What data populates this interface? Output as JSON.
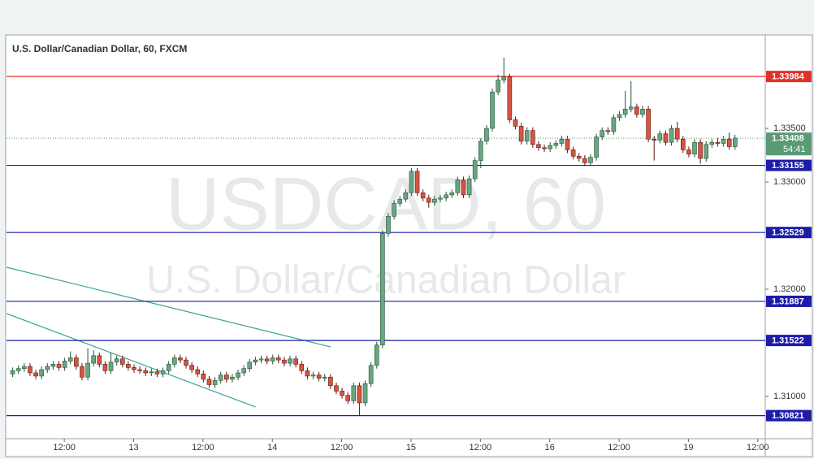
{
  "chart_data": {
    "type": "candlestick",
    "title": "U.S. Dollar/Canadian Dollar, 60, FXCM",
    "watermark": [
      "USDCAD, 60",
      "U.S. Dollar/Canadian Dollar"
    ],
    "up_color": "#6ba583",
    "down_color": "#d75442",
    "ylim": [
      1.30606,
      1.34364
    ],
    "yticks": [
      {
        "value": 1.335,
        "label": "1.33500"
      },
      {
        "value": 1.33,
        "label": "1.33000"
      },
      {
        "value": 1.32,
        "label": "1.32000"
      },
      {
        "value": 1.31,
        "label": "1.31000"
      }
    ],
    "xlim": [
      -1,
      130.3
    ],
    "xticks": [
      {
        "value": 9,
        "label": "12:00"
      },
      {
        "value": 21,
        "label": "13"
      },
      {
        "value": 33,
        "label": "12:00"
      },
      {
        "value": 45,
        "label": "14"
      },
      {
        "value": 57,
        "label": "12:00"
      },
      {
        "value": 69,
        "label": "15"
      },
      {
        "value": 81,
        "label": "12:00"
      },
      {
        "value": 93,
        "label": "16"
      },
      {
        "value": 105,
        "label": "12:00"
      },
      {
        "value": 117,
        "label": "19"
      },
      {
        "value": 129,
        "label": "12:00"
      }
    ],
    "levels": [
      {
        "value": 1.33984,
        "color": "#e0302a"
      },
      {
        "value": 1.33155,
        "color": "#1c1ca8"
      },
      {
        "value": 1.32529,
        "color": "#1c1ca8"
      },
      {
        "value": 1.31887,
        "color": "#1c1ca8"
      },
      {
        "value": 1.31522,
        "color": "#1c1ca8"
      },
      {
        "value": 1.30821,
        "color": "#1c1ca8"
      }
    ],
    "last_price": 1.33408,
    "last_color": "#5a9a74",
    "countdown": "54:41",
    "trend_lines": [
      {
        "color": "#3aa392",
        "x": [
          -1,
          55.1
        ],
        "y": [
          1.32205,
          1.31462
        ]
      },
      {
        "color": "#3aa392",
        "x": [
          -1,
          42.1
        ],
        "y": [
          1.31773,
          1.30902
        ]
      }
    ],
    "candles": [
      [
        1.3121,
        1.3127,
        1.3118,
        1.3124
      ],
      [
        1.3124,
        1.3129,
        1.3121,
        1.3126
      ],
      [
        1.3126,
        1.3131,
        1.3123,
        1.3128
      ],
      [
        1.3128,
        1.3131,
        1.3119,
        1.3122
      ],
      [
        1.3122,
        1.3125,
        1.3116,
        1.3119
      ],
      [
        1.3119,
        1.3128,
        1.3116,
        1.3125
      ],
      [
        1.3125,
        1.3131,
        1.3122,
        1.3128
      ],
      [
        1.3128,
        1.3133,
        1.3125,
        1.313
      ],
      [
        1.313,
        1.3133,
        1.3124,
        1.3127
      ],
      [
        1.3127,
        1.3136,
        1.3124,
        1.3133
      ],
      [
        1.3133,
        1.3142,
        1.313,
        1.3136
      ],
      [
        1.3136,
        1.3139,
        1.3125,
        1.3128
      ],
      [
        1.3128,
        1.3131,
        1.3115,
        1.3118
      ],
      [
        1.3118,
        1.3145,
        1.3115,
        1.3131
      ],
      [
        1.3131,
        1.3143,
        1.3128,
        1.3138
      ],
      [
        1.3138,
        1.3141,
        1.3127,
        1.313
      ],
      [
        1.313,
        1.3133,
        1.3121,
        1.3124
      ],
      [
        1.3124,
        1.3141,
        1.3121,
        1.3132
      ],
      [
        1.3132,
        1.3138,
        1.3129,
        1.3135
      ],
      [
        1.3135,
        1.3138,
        1.3127,
        1.313
      ],
      [
        1.313,
        1.3133,
        1.3124,
        1.3127
      ],
      [
        1.3127,
        1.313,
        1.3122,
        1.3125
      ],
      [
        1.3125,
        1.3128,
        1.3121,
        1.3124
      ],
      [
        1.3124,
        1.3127,
        1.3119,
        1.3122
      ],
      [
        1.3122,
        1.3126,
        1.3119,
        1.3123
      ],
      [
        1.3123,
        1.3126,
        1.3118,
        1.3121
      ],
      [
        1.3121,
        1.3127,
        1.3118,
        1.3124
      ],
      [
        1.3124,
        1.3133,
        1.3121,
        1.313
      ],
      [
        1.313,
        1.3139,
        1.3127,
        1.3136
      ],
      [
        1.3136,
        1.3139,
        1.3131,
        1.3134
      ],
      [
        1.3134,
        1.3137,
        1.3126,
        1.3129
      ],
      [
        1.3129,
        1.3132,
        1.3122,
        1.3125
      ],
      [
        1.3125,
        1.3128,
        1.3118,
        1.3121
      ],
      [
        1.3121,
        1.3124,
        1.3113,
        1.3116
      ],
      [
        1.3116,
        1.3119,
        1.3108,
        1.3111
      ],
      [
        1.3111,
        1.3118,
        1.3108,
        1.3115
      ],
      [
        1.3115,
        1.3123,
        1.3112,
        1.312
      ],
      [
        1.312,
        1.3123,
        1.3113,
        1.3116
      ],
      [
        1.3116,
        1.3121,
        1.3113,
        1.3118
      ],
      [
        1.3118,
        1.3125,
        1.3115,
        1.3122
      ],
      [
        1.3122,
        1.3129,
        1.3119,
        1.3126
      ],
      [
        1.3126,
        1.3135,
        1.3123,
        1.3132
      ],
      [
        1.3132,
        1.3137,
        1.3129,
        1.3134
      ],
      [
        1.3134,
        1.3138,
        1.3131,
        1.3135
      ],
      [
        1.3135,
        1.3138,
        1.313,
        1.3133
      ],
      [
        1.3133,
        1.3139,
        1.313,
        1.3136
      ],
      [
        1.3136,
        1.3139,
        1.3131,
        1.3134
      ],
      [
        1.3134,
        1.3137,
        1.3128,
        1.3131
      ],
      [
        1.3131,
        1.3138,
        1.3128,
        1.3135
      ],
      [
        1.3135,
        1.3138,
        1.3127,
        1.313
      ],
      [
        1.313,
        1.3133,
        1.3121,
        1.3124
      ],
      [
        1.3124,
        1.3127,
        1.3116,
        1.3119
      ],
      [
        1.3119,
        1.3123,
        1.3116,
        1.312
      ],
      [
        1.312,
        1.3123,
        1.3114,
        1.3117
      ],
      [
        1.3117,
        1.3121,
        1.3114,
        1.3118
      ],
      [
        1.3118,
        1.3121,
        1.3107,
        1.311
      ],
      [
        1.311,
        1.3113,
        1.3102,
        1.3105
      ],
      [
        1.3105,
        1.3108,
        1.3098,
        1.3101
      ],
      [
        1.3101,
        1.3104,
        1.3093,
        1.3096
      ],
      [
        1.3096,
        1.3113,
        1.3093,
        1.311
      ],
      [
        1.311,
        1.3113,
        1.3082,
        1.3094
      ],
      [
        1.3094,
        1.3115,
        1.3091,
        1.3112
      ],
      [
        1.3112,
        1.3132,
        1.3109,
        1.3129
      ],
      [
        1.3129,
        1.3151,
        1.3126,
        1.3148
      ],
      [
        1.3148,
        1.3255,
        1.3145,
        1.3252
      ],
      [
        1.3252,
        1.3271,
        1.3249,
        1.3268
      ],
      [
        1.3268,
        1.3283,
        1.3265,
        1.328
      ],
      [
        1.328,
        1.3287,
        1.3277,
        1.3284
      ],
      [
        1.3284,
        1.3293,
        1.3281,
        1.329
      ],
      [
        1.329,
        1.3313,
        1.3287,
        1.331
      ],
      [
        1.331,
        1.3313,
        1.3287,
        1.329
      ],
      [
        1.329,
        1.3293,
        1.3282,
        1.3285
      ],
      [
        1.3285,
        1.3288,
        1.3276,
        1.3281
      ],
      [
        1.3281,
        1.3287,
        1.3278,
        1.3284
      ],
      [
        1.3284,
        1.3288,
        1.3281,
        1.3285
      ],
      [
        1.3285,
        1.3291,
        1.3282,
        1.3288
      ],
      [
        1.3288,
        1.3293,
        1.3285,
        1.329
      ],
      [
        1.329,
        1.3305,
        1.3287,
        1.3302
      ],
      [
        1.3302,
        1.3305,
        1.3285,
        1.3288
      ],
      [
        1.3288,
        1.3306,
        1.3285,
        1.3303
      ],
      [
        1.3303,
        1.3323,
        1.33,
        1.332
      ],
      [
        1.332,
        1.3341,
        1.3313,
        1.3338
      ],
      [
        1.3338,
        1.3353,
        1.3335,
        1.335
      ],
      [
        1.335,
        1.3387,
        1.3347,
        1.3384
      ],
      [
        1.3384,
        1.34,
        1.3381,
        1.3395
      ],
      [
        1.3395,
        1.3416,
        1.3392,
        1.3398
      ],
      [
        1.3398,
        1.3401,
        1.3355,
        1.3358
      ],
      [
        1.3358,
        1.3361,
        1.3349,
        1.3352
      ],
      [
        1.3352,
        1.3355,
        1.3335,
        1.3338
      ],
      [
        1.3338,
        1.3351,
        1.3335,
        1.3348
      ],
      [
        1.3348,
        1.3351,
        1.3332,
        1.3335
      ],
      [
        1.3335,
        1.3338,
        1.3329,
        1.3332
      ],
      [
        1.3332,
        1.3335,
        1.3328,
        1.3331
      ],
      [
        1.3331,
        1.3337,
        1.3328,
        1.3334
      ],
      [
        1.3334,
        1.3339,
        1.3331,
        1.3336
      ],
      [
        1.3336,
        1.3343,
        1.3333,
        1.334
      ],
      [
        1.334,
        1.3343,
        1.3327,
        1.333
      ],
      [
        1.333,
        1.3333,
        1.3321,
        1.3324
      ],
      [
        1.3324,
        1.3327,
        1.3319,
        1.3322
      ],
      [
        1.3322,
        1.3325,
        1.3315,
        1.3318
      ],
      [
        1.3318,
        1.3326,
        1.3315,
        1.3323
      ],
      [
        1.3323,
        1.3345,
        1.332,
        1.3342
      ],
      [
        1.3342,
        1.3351,
        1.3339,
        1.3348
      ],
      [
        1.3348,
        1.3351,
        1.3344,
        1.3347
      ],
      [
        1.3347,
        1.3363,
        1.3344,
        1.336
      ],
      [
        1.336,
        1.3366,
        1.3357,
        1.3363
      ],
      [
        1.3363,
        1.3385,
        1.336,
        1.3368
      ],
      [
        1.3368,
        1.3394,
        1.3365,
        1.337
      ],
      [
        1.337,
        1.3373,
        1.336,
        1.3363
      ],
      [
        1.3363,
        1.3371,
        1.336,
        1.3368
      ],
      [
        1.3368,
        1.3371,
        1.3337,
        1.334
      ],
      [
        1.334,
        1.3343,
        1.332,
        1.3339
      ],
      [
        1.3339,
        1.3348,
        1.3336,
        1.3345
      ],
      [
        1.3345,
        1.3348,
        1.3334,
        1.3337
      ],
      [
        1.3337,
        1.3353,
        1.3334,
        1.335
      ],
      [
        1.335,
        1.3356,
        1.3337,
        1.334
      ],
      [
        1.334,
        1.3343,
        1.3327,
        1.333
      ],
      [
        1.333,
        1.3333,
        1.3323,
        1.3326
      ],
      [
        1.3326,
        1.334,
        1.3323,
        1.3337
      ],
      [
        1.3337,
        1.334,
        1.3317,
        1.3322
      ],
      [
        1.3322,
        1.3338,
        1.3319,
        1.3335
      ],
      [
        1.3335,
        1.334,
        1.3332,
        1.3337
      ],
      [
        1.3337,
        1.3341,
        1.3333,
        1.3336
      ],
      [
        1.3336,
        1.3343,
        1.3333,
        1.334
      ],
      [
        1.334,
        1.3346,
        1.333,
        1.3333
      ],
      [
        1.3333,
        1.3344,
        1.333,
        1.3341
      ]
    ]
  }
}
